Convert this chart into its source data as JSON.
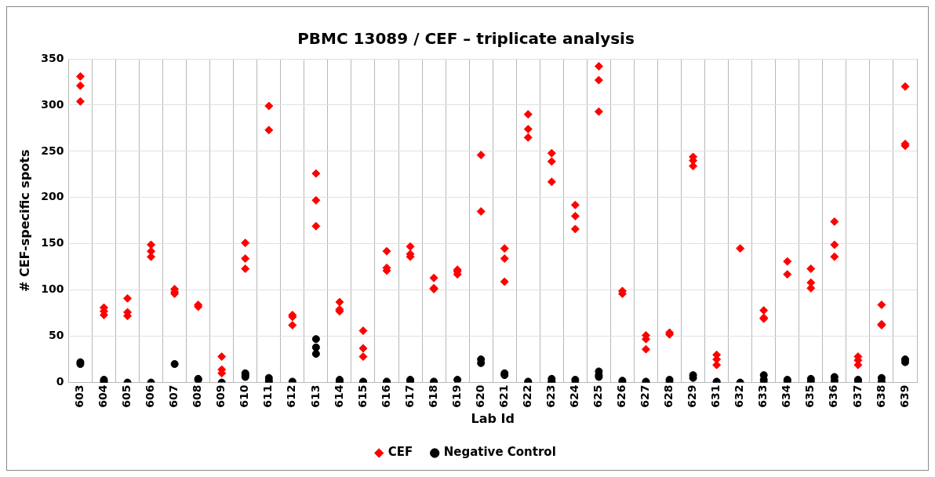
{
  "chart_data": {
    "type": "scatter",
    "title": "PBMC 13089 / CEF – triplicate analysis",
    "xlabel": "Lab Id",
    "ylabel": "# CEF-specific spots",
    "categories": [
      "603",
      "604",
      "605",
      "606",
      "607",
      "608",
      "609",
      "610",
      "611",
      "612",
      "613",
      "614",
      "615",
      "616",
      "617",
      "618",
      "619",
      "620",
      "621",
      "622",
      "623",
      "624",
      "625",
      "626",
      "627",
      "628",
      "629",
      "631",
      "632",
      "633",
      "634",
      "635",
      "636",
      "637",
      "638",
      "639"
    ],
    "ylim": [
      0,
      350
    ],
    "yticks": [
      0,
      50,
      100,
      150,
      200,
      250,
      300,
      350
    ],
    "grid": true,
    "legend": "bottom",
    "series": [
      {
        "name": "CEF",
        "color": "#ff0000",
        "marker": "diamond",
        "x": [
          "603",
          "603",
          "603",
          "604",
          "604",
          "604",
          "605",
          "605",
          "605",
          "606",
          "606",
          "606",
          "607",
          "607",
          "607",
          "608",
          "608",
          "609",
          "609",
          "609",
          "610",
          "610",
          "610",
          "611",
          "611",
          "612",
          "612",
          "612",
          "613",
          "613",
          "613",
          "614",
          "614",
          "614",
          "615",
          "615",
          "615",
          "616",
          "616",
          "616",
          "617",
          "617",
          "617",
          "618",
          "618",
          "618",
          "619",
          "619",
          "619",
          "620",
          "620",
          "621",
          "621",
          "621",
          "622",
          "622",
          "622",
          "623",
          "623",
          "623",
          "624",
          "624",
          "624",
          "625",
          "625",
          "625",
          "626",
          "626",
          "627",
          "627",
          "627",
          "628",
          "628",
          "629",
          "629",
          "629",
          "631",
          "631",
          "631",
          "632",
          "633",
          "633",
          "633",
          "634",
          "634",
          "635",
          "635",
          "635",
          "636",
          "636",
          "636",
          "637",
          "637",
          "637",
          "638",
          "638",
          "638",
          "639",
          "639",
          "639"
        ],
        "values": [
          331,
          321,
          304,
          81,
          77,
          73,
          91,
          76,
          72,
          149,
          142,
          136,
          101,
          98,
          96,
          84,
          82,
          28,
          14,
          10,
          151,
          134,
          123,
          299,
          273,
          73,
          71,
          62,
          226,
          197,
          169,
          87,
          79,
          77,
          56,
          37,
          28,
          142,
          124,
          121,
          147,
          139,
          136,
          113,
          102,
          101,
          122,
          120,
          117,
          246,
          185,
          145,
          134,
          109,
          290,
          274,
          265,
          248,
          239,
          217,
          192,
          180,
          166,
          342,
          327,
          293,
          99,
          96,
          51,
          47,
          36,
          54,
          52,
          244,
          240,
          234,
          30,
          25,
          19,
          145,
          78,
          70,
          69,
          131,
          117,
          123,
          108,
          102,
          174,
          149,
          136,
          28,
          24,
          19,
          84,
          63,
          62,
          320,
          258,
          256
        ]
      },
      {
        "name": "Negative Control",
        "color": "#000000",
        "marker": "circle",
        "x": [
          "603",
          "603",
          "604",
          "604",
          "604",
          "605",
          "606",
          "607",
          "608",
          "608",
          "609",
          "610",
          "610",
          "610",
          "611",
          "611",
          "611",
          "612",
          "613",
          "613",
          "613",
          "614",
          "614",
          "614",
          "615",
          "615",
          "616",
          "616",
          "617",
          "617",
          "618",
          "618",
          "619",
          "620",
          "620",
          "621",
          "621",
          "622",
          "622",
          "623",
          "623",
          "623",
          "624",
          "624",
          "625",
          "625",
          "625",
          "626",
          "626",
          "627",
          "627",
          "628",
          "628",
          "629",
          "629",
          "631",
          "631",
          "632",
          "633",
          "633",
          "633",
          "634",
          "634",
          "635",
          "635",
          "636",
          "636",
          "637",
          "637",
          "638",
          "638",
          "639",
          "639"
        ],
        "values": [
          22,
          20,
          3,
          1,
          0,
          0,
          0,
          20,
          4,
          3,
          0,
          10,
          8,
          6,
          5,
          2,
          0,
          1,
          47,
          38,
          31,
          3,
          1,
          0,
          1,
          0,
          1,
          0,
          3,
          1,
          1,
          0,
          3,
          25,
          21,
          10,
          8,
          1,
          0,
          4,
          1,
          0,
          3,
          0,
          12,
          8,
          6,
          2,
          0,
          1,
          0,
          3,
          0,
          8,
          5,
          1,
          0,
          0,
          8,
          3,
          0,
          3,
          1,
          4,
          1,
          6,
          2,
          3,
          1,
          5,
          1,
          25,
          22
        ]
      }
    ]
  }
}
